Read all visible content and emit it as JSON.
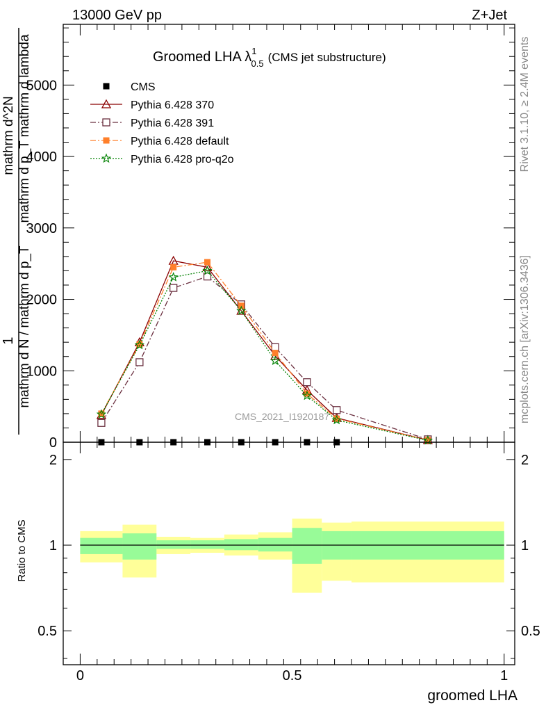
{
  "header": {
    "left": "13000 GeV pp",
    "right": "Z+Jet"
  },
  "side_labels": {
    "rivet": "Rivet 3.1.10, ≥ 2.4M events",
    "mcplots": "mcplots.cern.ch [arXiv:1306.3436]"
  },
  "chart_data": [
    {
      "type": "line",
      "title": "Groomed LHA",
      "title_symbol": "λ",
      "title_sup": "1",
      "title_sub": "0.5",
      "subtitle": "(CMS jet substructure)",
      "watermark": "CMS_2021_I1920187",
      "ylabel_lines": [
        "1",
        "mathrm d N / mathrm d p_T",
        "mathrm d^2N",
        "mathrm d p_T mathrm d lambda"
      ],
      "xlim": [
        -0.04,
        1.025
      ],
      "ylim": [
        0,
        5850
      ],
      "y_ticks": [
        0,
        1000,
        2000,
        3000,
        4000,
        5000
      ],
      "y_tick_labels": [
        "0",
        "1000",
        "2000",
        "3000",
        "4000",
        "5000"
      ],
      "legend_position": "top-left",
      "x": [
        0.05,
        0.14,
        0.22,
        0.3,
        0.38,
        0.46,
        0.535,
        0.605,
        0.82
      ],
      "series": [
        {
          "name": "CMS",
          "color": "#000000",
          "marker": "filled-square",
          "line": "none",
          "x": [
            0.05,
            0.14,
            0.22,
            0.3,
            0.38,
            0.46,
            0.535,
            0.605
          ],
          "values": [
            0,
            0,
            0,
            0,
            0,
            0,
            0,
            0
          ]
        },
        {
          "name": "Pythia 6.428 370",
          "color": "#8b0000",
          "marker": "open-triangle",
          "line": "solid",
          "values": [
            380,
            1400,
            2540,
            2450,
            1840,
            1210,
            730,
            340,
            30
          ]
        },
        {
          "name": "Pythia 6.428 391",
          "color": "#6b3040",
          "marker": "open-square",
          "line": "dashdot",
          "values": [
            270,
            1120,
            2160,
            2320,
            1930,
            1330,
            840,
            450,
            40
          ]
        },
        {
          "name": "Pythia 6.428 default",
          "color": "#ff7f2a",
          "marker": "filled-square",
          "line": "dashdot",
          "values": [
            400,
            1370,
            2450,
            2520,
            1910,
            1250,
            680,
            330,
            30
          ]
        },
        {
          "name": "Pythia 6.428 pro-q2o",
          "color": "#008000",
          "marker": "open-star",
          "line": "dotted",
          "values": [
            390,
            1360,
            2310,
            2400,
            1840,
            1140,
            650,
            310,
            25
          ]
        }
      ]
    },
    {
      "type": "area",
      "ylabel": "Ratio to CMS",
      "xlabel": "groomed LHA",
      "xlim": [
        -0.04,
        1.025
      ],
      "ylim": [
        0.38,
        2.3
      ],
      "y_ticks": [
        0.5,
        1,
        2
      ],
      "y_tick_labels": [
        "0.5",
        "1",
        "2"
      ],
      "x_ticks": [
        0,
        0.5,
        1
      ],
      "x_tick_labels": [
        "0",
        "0.5",
        "1"
      ],
      "reference_line": 1,
      "inner_band_color": "#98fb98",
      "outer_band_color": "#ffff99",
      "bins": [
        {
          "x0": 0.0,
          "x1": 0.1,
          "inner": [
            0.93,
            1.06
          ],
          "outer": [
            0.87,
            1.12
          ]
        },
        {
          "x0": 0.1,
          "x1": 0.18,
          "inner": [
            0.89,
            1.1
          ],
          "outer": [
            0.77,
            1.18
          ]
        },
        {
          "x0": 0.18,
          "x1": 0.26,
          "inner": [
            0.97,
            1.04
          ],
          "outer": [
            0.93,
            1.07
          ]
        },
        {
          "x0": 0.26,
          "x1": 0.34,
          "inner": [
            0.97,
            1.04
          ],
          "outer": [
            0.94,
            1.06
          ]
        },
        {
          "x0": 0.34,
          "x1": 0.42,
          "inner": [
            0.96,
            1.05
          ],
          "outer": [
            0.92,
            1.09
          ]
        },
        {
          "x0": 0.42,
          "x1": 0.5,
          "inner": [
            0.95,
            1.06
          ],
          "outer": [
            0.89,
            1.11
          ]
        },
        {
          "x0": 0.5,
          "x1": 0.57,
          "inner": [
            0.86,
            1.15
          ],
          "outer": [
            0.68,
            1.24
          ]
        },
        {
          "x0": 0.57,
          "x1": 0.64,
          "inner": [
            0.89,
            1.12
          ],
          "outer": [
            0.75,
            1.2
          ]
        },
        {
          "x0": 0.64,
          "x1": 1.0,
          "inner": [
            0.89,
            1.12
          ],
          "outer": [
            0.74,
            1.21
          ]
        }
      ]
    }
  ]
}
